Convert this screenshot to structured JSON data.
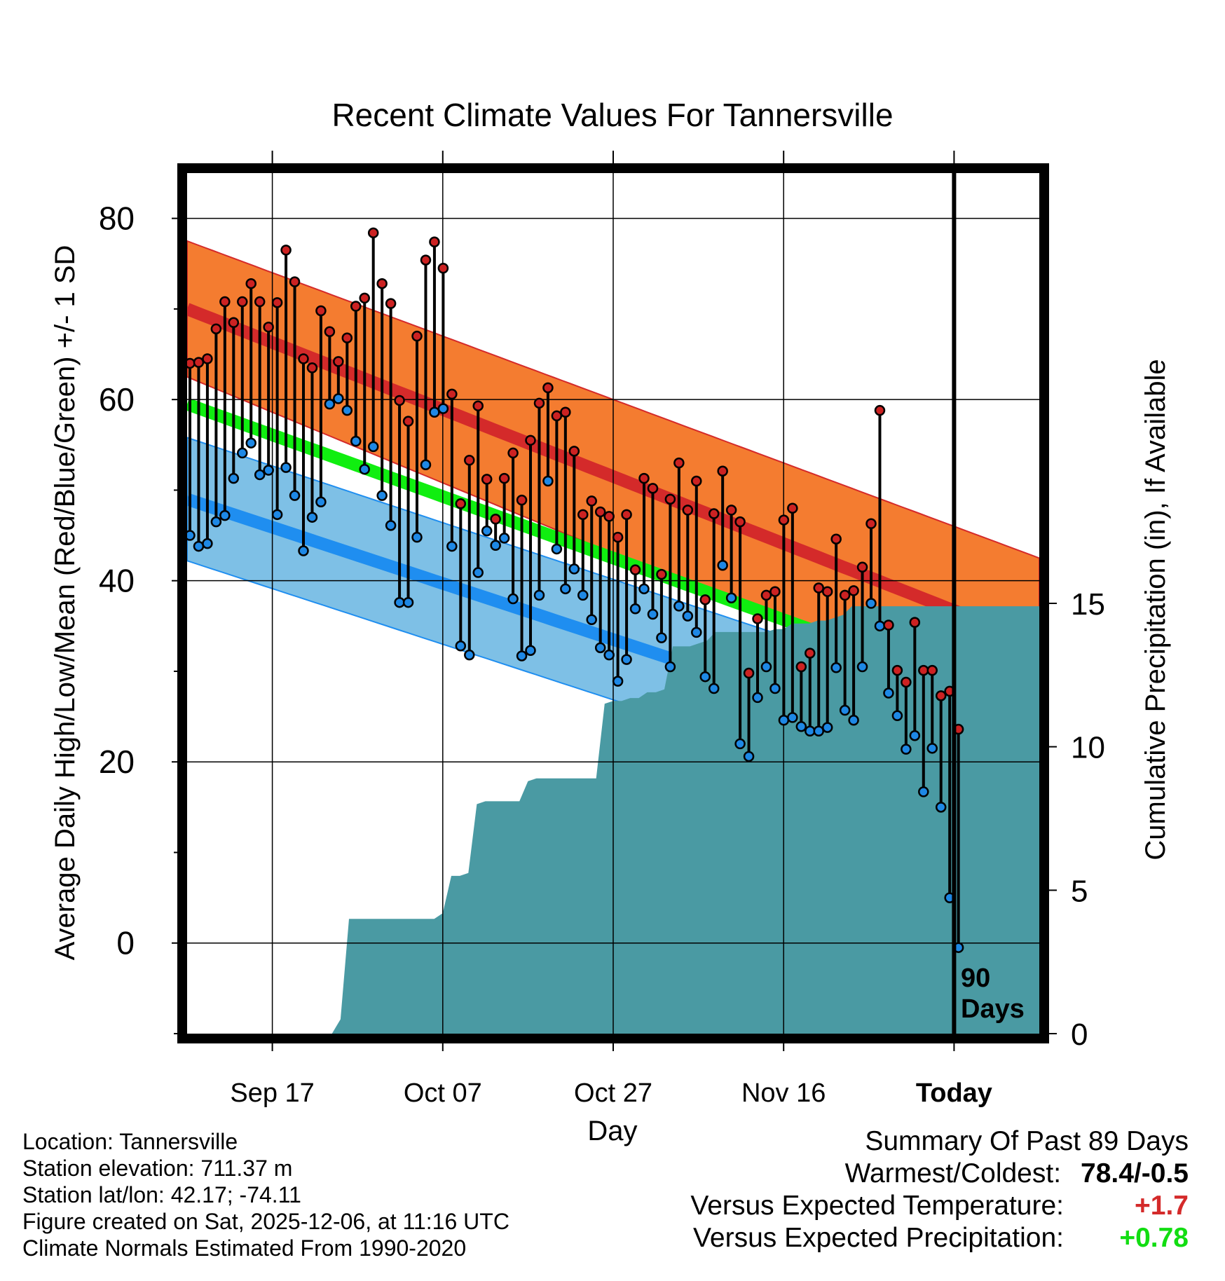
{
  "chart_data": {
    "type": "line",
    "title": "Recent Climate Values For Tannersville",
    "xlabel": "Day",
    "ylabel": "Average Daily High/Low/Mean (Red/Blue/Green) +/- 1 SD",
    "y2label": "Cumulative Precipitation (in), If Available",
    "ylim": [
      -10,
      85
    ],
    "y2lim": [
      0,
      30
    ],
    "xlim": [
      -10,
      90
    ],
    "y_ticks": [
      0,
      20,
      40,
      60,
      80
    ],
    "y_tick_labels": [
      "0",
      "20",
      "40",
      "60",
      "80"
    ],
    "y2_ticks": [
      0,
      5,
      10,
      15
    ],
    "y2_tick_labels": [
      "0",
      "5",
      "10",
      "15"
    ],
    "x_ticks": [
      0,
      20,
      40,
      60,
      80
    ],
    "x_tick_labels": [
      "Sep 17",
      "Oct 07",
      "Oct 27",
      "Nov 16",
      "Today"
    ],
    "today_marker_label": [
      "90",
      "Days"
    ],
    "grid": true,
    "normals": {
      "x": [
        -10,
        90
      ],
      "high_mean": [
        70,
        33
      ],
      "high_sd": [
        7.5,
        9.5
      ],
      "low_mean": [
        49,
        18
      ],
      "low_sd": [
        6.8,
        6.5
      ],
      "mean_mean": [
        59.5,
        25.5
      ]
    },
    "series": [
      {
        "name": "High",
        "color": "#cc2222",
        "values": [
          64.0,
          64.1,
          64.5,
          67.8,
          70.8,
          68.5,
          70.8,
          72.8,
          70.8,
          68.0,
          70.7,
          76.5,
          73.0,
          64.5,
          63.5,
          69.8,
          67.5,
          64.2,
          66.8,
          70.3,
          71.2,
          78.4,
          72.8,
          70.6,
          59.9,
          57.6,
          67.0,
          75.4,
          77.4,
          74.5,
          60.6,
          48.5,
          53.3,
          59.3,
          51.2,
          46.8,
          51.3,
          54.1,
          48.9,
          55.5,
          59.6,
          61.3,
          58.2,
          58.6,
          54.3,
          47.3,
          48.8,
          47.6,
          47.1,
          44.8,
          47.3,
          41.2,
          51.3,
          50.2,
          40.7,
          49.0,
          53.0,
          47.8,
          51.0,
          37.9,
          47.4,
          52.1,
          47.8,
          46.5,
          29.8,
          35.8,
          38.4,
          38.8,
          46.7,
          48.0,
          30.5,
          32.0,
          39.2,
          38.8,
          44.6,
          38.4,
          38.9,
          41.5,
          46.3,
          58.8,
          35.1,
          30.1,
          28.8,
          35.4,
          30.1,
          30.1,
          27.3,
          27.8,
          23.6
        ],
        "peak_label": "78.4"
      },
      {
        "name": "Low",
        "color": "#1e88e5",
        "values": [
          45.0,
          43.8,
          44.1,
          46.5,
          47.2,
          51.3,
          54.1,
          55.2,
          51.7,
          52.2,
          47.3,
          52.5,
          49.4,
          43.3,
          47.0,
          48.7,
          59.5,
          60.1,
          58.8,
          55.4,
          52.3,
          54.8,
          49.4,
          46.1,
          37.6,
          37.6,
          44.8,
          52.8,
          58.6,
          59.0,
          43.8,
          32.8,
          31.8,
          40.9,
          45.5,
          43.9,
          44.7,
          38.0,
          31.7,
          32.3,
          38.4,
          51.0,
          43.5,
          39.1,
          41.3,
          38.4,
          35.7,
          32.6,
          31.8,
          28.9,
          31.3,
          36.9,
          39.1,
          36.3,
          33.7,
          30.5,
          37.2,
          36.1,
          34.3,
          29.4,
          28.1,
          41.7,
          38.1,
          22.0,
          20.6,
          27.1,
          30.5,
          28.1,
          24.6,
          24.9,
          23.9,
          23.4,
          23.4,
          23.8,
          30.4,
          25.7,
          24.6,
          30.5,
          37.5,
          35.0,
          27.6,
          25.1,
          21.4,
          22.9,
          16.7,
          21.5,
          15.0,
          5.0,
          -0.5
        ],
        "trough_label": "-0.5"
      }
    ],
    "precipitation": {
      "x": [
        7,
        8,
        9,
        10,
        11,
        12,
        13,
        14,
        15,
        16,
        17,
        18,
        19,
        20,
        21,
        22,
        23,
        24,
        25,
        26,
        27,
        28,
        29,
        30,
        31,
        32,
        33,
        34,
        35,
        36,
        37,
        38,
        39,
        40,
        41,
        42,
        43,
        44,
        45,
        46,
        47,
        48,
        49,
        50,
        51,
        52,
        53,
        54,
        55,
        56,
        57,
        58,
        59,
        60,
        61,
        62,
        63,
        64,
        65,
        66,
        67,
        68,
        69,
        70,
        71,
        72,
        73,
        74,
        75,
        76,
        77,
        78,
        79,
        80,
        81,
        82,
        83,
        84,
        85,
        86,
        87,
        88,
        89,
        90
      ],
      "values": [
        0,
        0.5,
        4.0,
        4.0,
        4.0,
        4.0,
        4.0,
        4.0,
        4.0,
        4.0,
        4.0,
        4.0,
        4.0,
        4.2,
        5.5,
        5.5,
        5.6,
        8.0,
        8.1,
        8.1,
        8.1,
        8.1,
        8.1,
        8.8,
        8.9,
        8.9,
        8.9,
        8.9,
        8.9,
        8.9,
        8.9,
        8.9,
        11.5,
        11.6,
        11.6,
        11.7,
        11.7,
        11.9,
        11.9,
        12.0,
        13.5,
        13.5,
        13.5,
        13.6,
        13.7,
        14.0,
        14.0,
        14.0,
        14.0,
        14.0,
        14.0,
        14.0,
        14.1,
        14.1,
        14.3,
        14.3,
        14.3,
        14.4,
        14.4,
        14.5,
        14.6,
        14.9,
        14.9,
        14.9,
        14.9,
        14.9,
        14.9,
        14.9,
        14.9,
        14.9,
        14.9,
        14.9,
        14.9,
        14.9,
        14.9,
        14.9,
        14.9,
        14.9,
        14.9,
        14.9,
        14.9,
        14.9,
        14.9,
        14.9
      ]
    },
    "colors": {
      "high_band": "#f47c30",
      "high_line": "#d42a2a",
      "low_band": "#7ec0e6",
      "low_line": "#1f8ef0",
      "mean_line": "#10ee10",
      "overlap_band": "#9a1515",
      "precip": "#4a9aa3"
    }
  },
  "footer": {
    "location": "Location: Tannersville",
    "elevation": "Station elevation: 711.37 m",
    "latlon": "Station lat/lon: 42.17; -74.11",
    "created": "Figure created on Sat, 2025-12-06, at 11:16 UTC",
    "normals": "Climate Normals Estimated From 1990-2020"
  },
  "summary": {
    "title": "Summary Of Past 89 Days",
    "warmest_coldest_label": "Warmest/Coldest:",
    "warmest_coldest_value": "78.4/-0.5",
    "temp_label": "Versus Expected Temperature:",
    "temp_value": "+1.7",
    "temp_color": "#d42a2a",
    "precip_label": "Versus Expected Precipitation:",
    "precip_value": "+0.78",
    "precip_color": "#12dd12"
  }
}
